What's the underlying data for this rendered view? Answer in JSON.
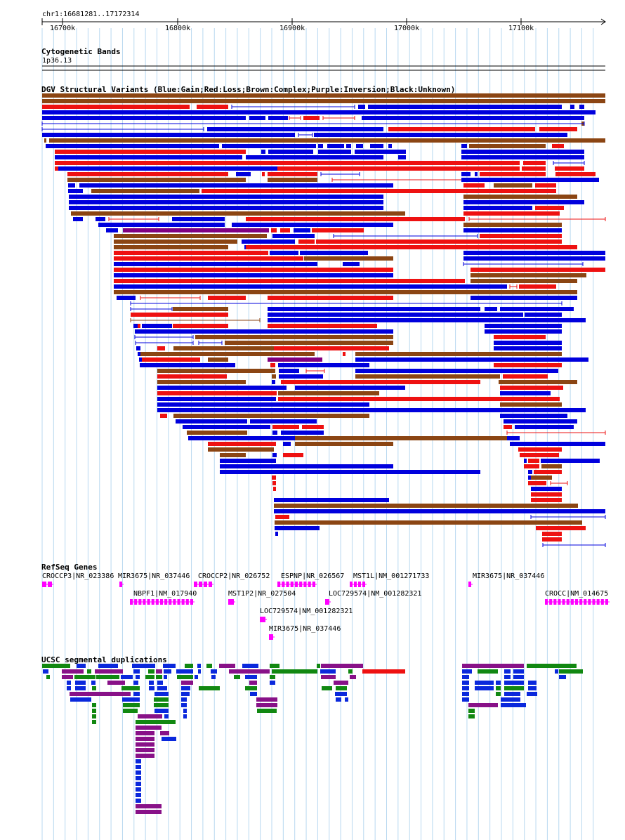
{
  "ruler": {
    "region": "chr1:16681281..17172314",
    "ticks": [
      "16700k",
      "16800k",
      "16900k",
      "17000k",
      "17100k"
    ]
  },
  "tracks": {
    "cytoband": {
      "title": "Cytogenetic Bands",
      "band": "1p36.13"
    },
    "dgv": {
      "title": "DGV Structural Variants (Blue:Gain;Red:Loss;Brown:Complex;Purple:Inversion;Black:Unknown)"
    },
    "refseq": {
      "title": "RefSeq Genes"
    },
    "segdup": {
      "title": "UCSC segmental duplications"
    }
  },
  "genes": [
    {
      "name": "CROCCP3|NR_023386"
    },
    {
      "name": "MIR3675|NR_037446"
    },
    {
      "name": "CROCCP2|NR_026752"
    },
    {
      "name": "ESPNP|NR_026567"
    },
    {
      "name": "MST1L|NM_001271733"
    },
    {
      "name": "MIR3675|NR_037446"
    },
    {
      "name": "NBPF1|NM_017940"
    },
    {
      "name": "MST1P2|NR_027504"
    },
    {
      "name": "LOC729574|NM_001282321"
    },
    {
      "name": "CROCC|NM_014675"
    },
    {
      "name": "LOC729574|NM_001282321"
    },
    {
      "name": "MIR3675|NR_037446"
    }
  ],
  "colors": {
    "gain": "#0000dd",
    "loss": "#ee1111",
    "complex": "#8b4513",
    "inversion": "#800080",
    "gene": "#ff00ff",
    "segdup_green": "#118811",
    "segdup_purple": "#881188",
    "segdup_blue": "#0a28dc",
    "segdup_red": "#ee1111",
    "grid": "#b8d8f0"
  }
}
